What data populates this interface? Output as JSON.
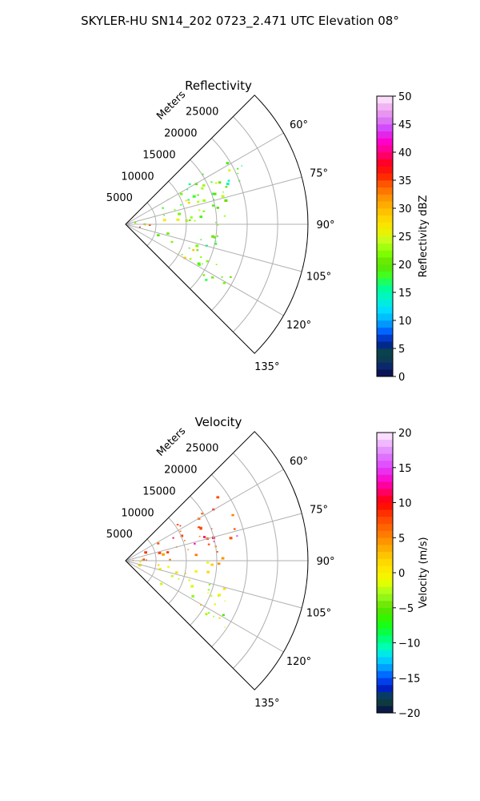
{
  "figure": {
    "suptitle": "SKYLER-HU  SN14_202  0723_2.471 UTC Elevation 08°"
  },
  "chart_data": [
    {
      "type": "heatmap",
      "projection": "polar-sector",
      "title": "Reflectivity",
      "radial_axis_label": "Meters",
      "radial_ticks": [
        "5000",
        "10000",
        "15000",
        "20000",
        "25000"
      ],
      "radial_tick_values": [
        5000,
        10000,
        15000,
        20000,
        25000
      ],
      "rlim": [
        0,
        30000
      ],
      "azimuth_ticks": [
        "60°",
        "75°",
        "90°",
        "105°",
        "120°",
        "135°"
      ],
      "azimuth_tick_values": [
        60,
        75,
        90,
        105,
        120,
        135
      ],
      "azimuth_range": [
        45,
        135
      ],
      "grid": true,
      "colorbar": {
        "label": "Reflectivity dBZ",
        "range": [
          0,
          50
        ],
        "ticks": [
          "0",
          "5",
          "10",
          "15",
          "20",
          "25",
          "30",
          "35",
          "40",
          "45",
          "50"
        ],
        "tick_values": [
          0,
          5,
          10,
          15,
          20,
          25,
          30,
          35,
          40,
          45,
          50
        ],
        "stops": [
          [
            0,
            "#0a0a4a"
          ],
          [
            2,
            "#0b2a6e"
          ],
          [
            4,
            "#0c4a3a"
          ],
          [
            6,
            "#00209f"
          ],
          [
            8,
            "#0060ff"
          ],
          [
            10,
            "#00b0ff"
          ],
          [
            12,
            "#00e0ff"
          ],
          [
            14,
            "#00f5c8"
          ],
          [
            16,
            "#00ff90"
          ],
          [
            18,
            "#40ff20"
          ],
          [
            20,
            "#60e000"
          ],
          [
            22,
            "#80ff00"
          ],
          [
            24,
            "#c0ff20"
          ],
          [
            26,
            "#f0f000"
          ],
          [
            28,
            "#ffd800"
          ],
          [
            30,
            "#ffb800"
          ],
          [
            32,
            "#ff9000"
          ],
          [
            34,
            "#ff6000"
          ],
          [
            36,
            "#ff2000"
          ],
          [
            38,
            "#ff0020"
          ],
          [
            40,
            "#ff0080"
          ],
          [
            42,
            "#ff00d0"
          ],
          [
            44,
            "#d040ff"
          ],
          [
            46,
            "#e080f0"
          ],
          [
            48,
            "#f0b0f0"
          ],
          [
            50,
            "#fff0ff"
          ]
        ]
      },
      "echo_cells": [
        {
          "az_min": 55,
          "az_max": 75,
          "r_min": 0,
          "r_max": 22000,
          "value": 17
        },
        {
          "az_min": 60,
          "az_max": 80,
          "r_min": 3000,
          "r_max": 18000,
          "value": 22
        },
        {
          "az_min": 66,
          "az_max": 74,
          "r_min": 7000,
          "r_max": 13000,
          "value": 29
        },
        {
          "az_min": 62,
          "az_max": 68,
          "r_min": 17000,
          "r_max": 20000,
          "value": 22
        },
        {
          "az_min": 75,
          "az_max": 95,
          "r_min": 0,
          "r_max": 18000,
          "value": 21
        },
        {
          "az_min": 84,
          "az_max": 92,
          "r_min": 2000,
          "r_max": 9000,
          "value": 27
        },
        {
          "az_min": 88,
          "az_max": 94,
          "r_min": 0,
          "r_max": 4000,
          "value": 33
        },
        {
          "az_min": 95,
          "az_max": 106,
          "r_min": 0,
          "r_max": 16000,
          "value": 19
        },
        {
          "az_min": 106,
          "az_max": 122,
          "r_min": 2000,
          "r_max": 20000,
          "value": 21
        },
        {
          "az_min": 110,
          "az_max": 120,
          "r_min": 5000,
          "r_max": 12000,
          "value": 27
        },
        {
          "az_min": 114,
          "az_max": 118,
          "r_min": 6000,
          "r_max": 8000,
          "value": 35
        },
        {
          "az_min": 92,
          "az_max": 102,
          "r_min": 0,
          "r_max": 3000,
          "value": 36
        },
        {
          "az_min": 112,
          "az_max": 126,
          "r_min": 10000,
          "r_max": 19000,
          "value": 20
        }
      ]
    },
    {
      "type": "heatmap",
      "projection": "polar-sector",
      "title": "Velocity",
      "radial_axis_label": "Meters",
      "radial_ticks": [
        "5000",
        "10000",
        "15000",
        "20000",
        "25000"
      ],
      "radial_tick_values": [
        5000,
        10000,
        15000,
        20000,
        25000
      ],
      "rlim": [
        0,
        30000
      ],
      "azimuth_ticks": [
        "60°",
        "75°",
        "90°",
        "105°",
        "120°",
        "135°"
      ],
      "azimuth_tick_values": [
        60,
        75,
        90,
        105,
        120,
        135
      ],
      "azimuth_range": [
        45,
        135
      ],
      "grid": true,
      "colorbar": {
        "label": "Velocity (m/s)",
        "range": [
          -20,
          20
        ],
        "ticks": [
          "−20",
          "−15",
          "−10",
          "−5",
          "0",
          "5",
          "10",
          "15",
          "20"
        ],
        "tick_values": [
          -20,
          -15,
          -10,
          -5,
          0,
          5,
          10,
          15,
          20
        ],
        "stops": [
          [
            -20,
            "#0a0a4a"
          ],
          [
            -18,
            "#0c4a3a"
          ],
          [
            -16.5,
            "#0020c0"
          ],
          [
            -15,
            "#0050ff"
          ],
          [
            -13.5,
            "#00a0ff"
          ],
          [
            -12,
            "#00e0ff"
          ],
          [
            -10.5,
            "#00ffb0"
          ],
          [
            -9,
            "#00ff60"
          ],
          [
            -7,
            "#20ff00"
          ],
          [
            -5,
            "#60e000"
          ],
          [
            -3,
            "#a0ff20"
          ],
          [
            -1.5,
            "#e0ff00"
          ],
          [
            0,
            "#fff000"
          ],
          [
            2,
            "#ffd000"
          ],
          [
            4,
            "#ffa000"
          ],
          [
            6,
            "#ff7000"
          ],
          [
            8,
            "#ff4000"
          ],
          [
            10,
            "#ff0000"
          ],
          [
            11.5,
            "#ff0060"
          ],
          [
            13,
            "#ff00c0"
          ],
          [
            15,
            "#e040ff"
          ],
          [
            17,
            "#e080ff"
          ],
          [
            20,
            "#fff0ff"
          ]
        ]
      },
      "echo_cells": [
        {
          "az_min": 55,
          "az_max": 80,
          "r_min": 0,
          "r_max": 20000,
          "value": 8
        },
        {
          "az_min": 62,
          "az_max": 78,
          "r_min": 8000,
          "r_max": 16000,
          "value": 10
        },
        {
          "az_min": 72,
          "az_max": 80,
          "r_min": 13000,
          "r_max": 19000,
          "value": 14
        },
        {
          "az_min": 80,
          "az_max": 95,
          "r_min": 0,
          "r_max": 17000,
          "value": 5
        },
        {
          "az_min": 90,
          "az_max": 100,
          "r_min": 0,
          "r_max": 15000,
          "value": 1
        },
        {
          "az_min": 100,
          "az_max": 112,
          "r_min": 0,
          "r_max": 17000,
          "value": -1
        },
        {
          "az_min": 108,
          "az_max": 124,
          "r_min": 0,
          "r_max": 20000,
          "value": -3
        },
        {
          "az_min": 113,
          "az_max": 122,
          "r_min": 12000,
          "r_max": 19000,
          "value": 0
        },
        {
          "az_min": 64,
          "az_max": 68,
          "r_min": 18500,
          "r_max": 20500,
          "value": 10
        }
      ]
    }
  ]
}
